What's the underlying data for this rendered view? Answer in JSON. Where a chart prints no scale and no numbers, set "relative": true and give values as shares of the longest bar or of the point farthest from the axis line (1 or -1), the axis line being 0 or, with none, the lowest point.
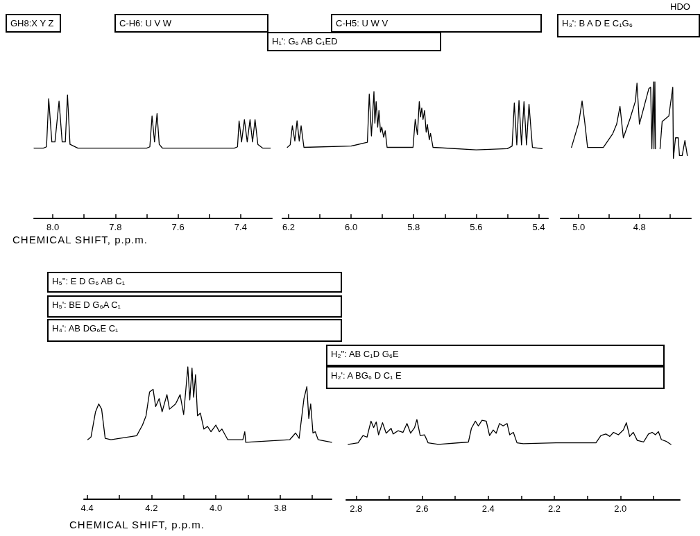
{
  "chart_data": [
    {
      "type": "line",
      "relative": true,
      "color": "#000000",
      "marker": "none",
      "tick_labels": "x",
      "xlim": [
        8.06,
        7.3
      ],
      "xticks": [
        {
          "value": 8,
          "label": "8.0"
        },
        {
          "value": 7.9,
          "label": null
        },
        {
          "value": 7.8,
          "label": "7.8"
        },
        {
          "value": 7.7,
          "label": null
        },
        {
          "value": 7.6,
          "label": "7.6"
        },
        {
          "value": 7.5,
          "label": null
        },
        {
          "value": 7.4,
          "label": "7.4"
        }
      ],
      "xlabel": "CHEMICAL SHIFT, p.p.m.",
      "annotations": [
        "GH8:X Y Z",
        "C-H6: U V W"
      ],
      "x": [
        8.06,
        8.03,
        8.02,
        8.013,
        8.003,
        7.993,
        7.98,
        7.97,
        7.96,
        7.953,
        7.945,
        7.92,
        7.7,
        7.69,
        7.683,
        7.675,
        7.667,
        7.66,
        7.65,
        7.42,
        7.41,
        7.405,
        7.397,
        7.388,
        7.379,
        7.37,
        7.362,
        7.354,
        7.345,
        7.33,
        7.305
      ],
      "values": [
        0.57,
        0.57,
        0.58,
        0.97,
        0.62,
        0.62,
        0.95,
        0.62,
        0.62,
        1,
        0.6,
        0.57,
        0.57,
        0.58,
        0.83,
        0.62,
        0.85,
        0.6,
        0.57,
        0.57,
        0.58,
        0.79,
        0.62,
        0.8,
        0.62,
        0.8,
        0.62,
        0.8,
        0.6,
        0.57,
        0.57
      ]
    },
    {
      "type": "line",
      "relative": true,
      "color": "#000000",
      "marker": "none",
      "tick_labels": "x",
      "xlim": [
        6.22,
        5.37
      ],
      "xticks": [
        {
          "value": 6.2,
          "label": "6.2"
        },
        {
          "value": 6.1,
          "label": null
        },
        {
          "value": 6,
          "label": "6.0"
        },
        {
          "value": 5.9,
          "label": null
        },
        {
          "value": 5.8,
          "label": "5.8"
        },
        {
          "value": 5.7,
          "label": null
        },
        {
          "value": 5.6,
          "label": "5.6"
        },
        {
          "value": 5.5,
          "label": null
        },
        {
          "value": 5.4,
          "label": "5.4"
        }
      ],
      "annotations": [
        "C-H5: U W V",
        "H₁': G₆ AB C₁ED"
      ],
      "x": [
        6.204,
        6.195,
        6.188,
        6.18,
        6.173,
        6.166,
        6.16,
        6.151,
        6.0,
        5.948,
        5.942,
        5.935,
        5.927,
        5.924,
        5.92,
        5.915,
        5.911,
        5.906,
        5.902,
        5.896,
        5.891,
        5.885,
        5.802,
        5.795,
        5.788,
        5.782,
        5.778,
        5.774,
        5.77,
        5.765,
        5.76,
        5.756,
        5.75,
        5.746,
        5.738,
        5.6,
        5.5,
        5.485,
        5.478,
        5.47,
        5.463,
        5.455,
        5.447,
        5.439,
        5.431,
        5.42,
        5.389
      ],
      "values": [
        0.56,
        0.58,
        0.73,
        0.61,
        0.77,
        0.61,
        0.73,
        0.56,
        0.57,
        0.6,
        0.98,
        0.65,
        1,
        0.75,
        0.92,
        0.72,
        0.85,
        0.68,
        0.72,
        0.64,
        0.69,
        0.56,
        0.56,
        0.78,
        0.66,
        0.92,
        0.8,
        0.87,
        0.78,
        0.85,
        0.68,
        0.74,
        0.62,
        0.67,
        0.56,
        0.54,
        0.55,
        0.57,
        0.91,
        0.58,
        0.93,
        0.58,
        0.92,
        0.58,
        0.9,
        0.56,
        0.55
      ]
    },
    {
      "type": "line",
      "relative": true,
      "color": "#000000",
      "marker": "none",
      "tick_labels": "x",
      "xlim": [
        5.06,
        4.63
      ],
      "xticks": [
        {
          "value": 5,
          "label": "5.0"
        },
        {
          "value": 4.9,
          "label": null
        },
        {
          "value": 4.8,
          "label": "4.8"
        },
        {
          "value": 4.7,
          "label": null
        }
      ],
      "annotations": [
        "HDO",
        "H₃': B A D E C₁G₆"
      ],
      "x": [
        5.024,
        5.0,
        4.989,
        4.98,
        4.971,
        4.919,
        4.888,
        4.875,
        4.864,
        4.853,
        4.831,
        4.813,
        4.808,
        4.8,
        4.769,
        4.763,
        4.759,
        4.754,
        4.752,
        4.749,
        4.747,
        4.74,
        4.732,
        4.725,
        4.703,
        4.69,
        4.688,
        4.681,
        4.672,
        4.668,
        4.659,
        4.65,
        4.642
      ],
      "values": [
        0.52,
        0.7,
        0.86,
        0.7,
        0.52,
        0.52,
        0.62,
        0.69,
        0.82,
        0.59,
        0.73,
        0.86,
        0.99,
        0.69,
        0.95,
        0.96,
        0.51,
        1,
        0.51,
        1,
        0.51,
        null,
        0.51,
        0.71,
        0.75,
        0.96,
        0.44,
        0.59,
        0.59,
        0.46,
        0.46,
        0.57,
        0.46
      ]
    },
    {
      "type": "line",
      "relative": true,
      "color": "#000000",
      "marker": "none",
      "tick_labels": "x",
      "xlim": [
        4.41,
        3.64
      ],
      "xticks": [
        {
          "value": 4.4,
          "label": "4.4"
        },
        {
          "value": 4.3,
          "label": null
        },
        {
          "value": 4.2,
          "label": "4.2"
        },
        {
          "value": 4.1,
          "label": null
        },
        {
          "value": 4,
          "label": "4.0"
        },
        {
          "value": 3.9,
          "label": null
        },
        {
          "value": 3.8,
          "label": "3.8"
        },
        {
          "value": 3.7,
          "label": null
        }
      ],
      "xlabel": "CHEMICAL SHIFT, p.p.m.",
      "annotations": [
        "H₅'': E D G₆ AB C₁",
        "H₅': BE D G₆A C₁",
        "H₄': AB DG₆E C₁"
      ],
      "x": [
        4.398,
        4.388,
        4.374,
        4.364,
        4.355,
        4.344,
        4.326,
        4.246,
        4.228,
        4.217,
        4.206,
        4.195,
        4.187,
        4.176,
        4.167,
        4.152,
        4.144,
        4.125,
        4.111,
        4.1,
        4.087,
        4.081,
        4.074,
        4.069,
        4.063,
        4.057,
        4.048,
        4.037,
        4.026,
        4.015,
        4.0,
        3.989,
        3.981,
        3.963,
        3.916,
        3.91,
        3.907,
        3.77,
        3.752,
        3.741,
        3.726,
        3.717,
        3.711,
        3.705,
        3.698,
        3.691,
        3.682,
        3.64
      ],
      "values": [
        0.45,
        0.47,
        0.66,
        0.72,
        0.68,
        0.46,
        0.45,
        0.48,
        0.56,
        0.63,
        0.81,
        0.83,
        0.7,
        0.76,
        0.66,
        0.79,
        0.68,
        0.72,
        0.79,
        0.64,
        1,
        0.75,
        0.99,
        0.77,
        0.94,
        0.63,
        0.65,
        0.53,
        0.55,
        0.51,
        0.56,
        0.51,
        0.53,
        0.45,
        0.45,
        0.51,
        0.43,
        0.45,
        0.5,
        0.46,
        0.76,
        0.85,
        0.61,
        0.72,
        0.5,
        0.51,
        0.45,
        0.43
      ]
    },
    {
      "type": "line",
      "relative": true,
      "color": "#000000",
      "marker": "none",
      "tick_labels": "x",
      "xlim": [
        2.83,
        1.82
      ],
      "xticks": [
        {
          "value": 2.8,
          "label": "2.8"
        },
        {
          "value": 2.7,
          "label": null
        },
        {
          "value": 2.6,
          "label": "2.6"
        },
        {
          "value": 2.5,
          "label": null
        },
        {
          "value": 2.4,
          "label": "2.4"
        },
        {
          "value": 2.3,
          "label": null
        },
        {
          "value": 2.2,
          "label": "2.2"
        },
        {
          "value": 2.1,
          "label": null
        },
        {
          "value": 2,
          "label": "2.0"
        },
        {
          "value": 1.9,
          "label": null
        }
      ],
      "annotations": [
        "H₂'': AB C₁D G₆E",
        "H₂': A BG₆ D C₁ E"
      ],
      "x": [
        2.824,
        2.794,
        2.779,
        2.767,
        2.755,
        2.747,
        2.739,
        2.732,
        2.72,
        2.709,
        2.694,
        2.688,
        2.673,
        2.658,
        2.646,
        2.635,
        2.623,
        2.616,
        2.606,
        2.593,
        2.582,
        2.551,
        2.46,
        2.451,
        2.439,
        2.43,
        2.419,
        2.406,
        2.396,
        2.385,
        2.376,
        2.366,
        2.355,
        2.343,
        2.335,
        2.324,
        2.313,
        2.294,
        2.195,
        2.074,
        2.059,
        2.044,
        2.032,
        2.021,
        2.006,
        1.991,
        1.982,
        1.972,
        1.961,
        1.949,
        1.93,
        1.915,
        1.904,
        1.894,
        1.885,
        1.876,
        1.862,
        1.847
      ],
      "values": [
        0.69,
        0.71,
        0.8,
        0.78,
        0.98,
        0.9,
        0.97,
        0.81,
        0.96,
        0.83,
        0.89,
        0.82,
        0.86,
        0.84,
        0.95,
        0.83,
        0.9,
        1,
        0.8,
        0.81,
        0.71,
        0.69,
        0.72,
        0.89,
        0.98,
        0.92,
        0.99,
        0.98,
        0.8,
        0.87,
        0.83,
        0.95,
        0.92,
        0.95,
        0.81,
        0.84,
        0.71,
        0.7,
        0.71,
        0.71,
        0.8,
        0.82,
        0.79,
        0.84,
        0.81,
        0.87,
        0.96,
        0.79,
        0.84,
        0.74,
        0.72,
        0.82,
        0.84,
        0.81,
        0.85,
        0.75,
        0.73,
        0.69
      ]
    }
  ]
}
